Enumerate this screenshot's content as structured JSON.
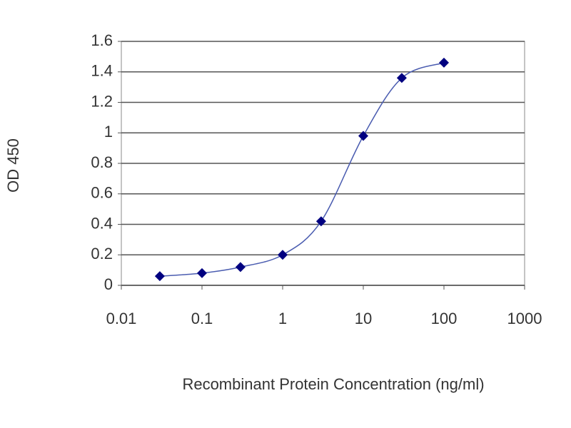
{
  "chart_data": {
    "type": "line",
    "xlabel": "Recombinant Protein Concentration (ng/ml)",
    "ylabel": "OD 450",
    "x": [
      0.03,
      0.1,
      0.3,
      1,
      3,
      10,
      30,
      100
    ],
    "series": [
      {
        "color": "#000080",
        "line_color": "#4a5cb0",
        "values": [
          0.06,
          0.08,
          0.12,
          0.2,
          0.42,
          0.98,
          1.36,
          1.46
        ]
      }
    ],
    "xscale": "log",
    "xlim": [
      0.01,
      1000
    ],
    "xticks": [
      0.01,
      0.1,
      1,
      10,
      100,
      1000
    ],
    "ylim": [
      0,
      1.6
    ],
    "yticks": [
      0,
      0.2,
      0.4,
      0.6,
      0.8,
      1,
      1.2,
      1.4,
      1.6
    ],
    "grid": true
  }
}
